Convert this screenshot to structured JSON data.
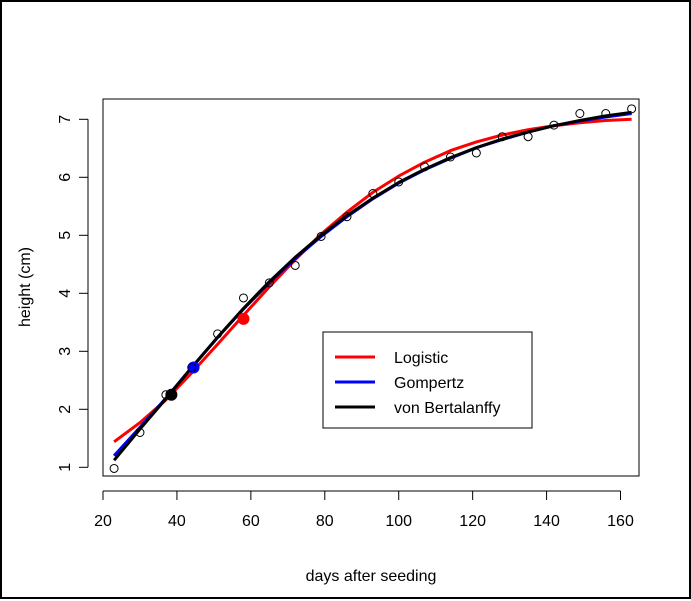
{
  "chart_data": {
    "type": "line",
    "title": "",
    "xlabel": "days after seeding",
    "ylabel": "height (cm)",
    "xlim": [
      20,
      165
    ],
    "ylim": [
      0.85,
      7.35
    ],
    "x_ticks": [
      20,
      40,
      60,
      80,
      100,
      120,
      140,
      160
    ],
    "y_ticks": [
      1,
      2,
      3,
      4,
      5,
      6,
      7
    ],
    "grid": false,
    "legend_position": "center-right",
    "observations": {
      "x": [
        23,
        30,
        37,
        44,
        51,
        58,
        65,
        72,
        79,
        86,
        93,
        100,
        107,
        114,
        121,
        128,
        135,
        142,
        149,
        156,
        163
      ],
      "y": [
        0.98,
        1.6,
        2.25,
        2.72,
        3.3,
        3.92,
        4.18,
        4.48,
        4.98,
        5.32,
        5.72,
        5.92,
        6.18,
        6.35,
        6.42,
        6.7,
        6.7,
        6.9,
        7.1,
        7.1,
        7.18
      ]
    },
    "series": [
      {
        "name": "Logistic",
        "color": "#ff0000",
        "x": [
          23,
          30,
          37,
          44,
          51,
          58,
          65,
          72,
          79,
          86,
          93,
          100,
          107,
          114,
          121,
          128,
          135,
          142,
          149,
          156,
          163
        ],
        "y": [
          1.44,
          1.77,
          2.16,
          2.63,
          3.12,
          3.62,
          4.11,
          4.58,
          5.02,
          5.4,
          5.74,
          6.02,
          6.26,
          6.46,
          6.61,
          6.73,
          6.82,
          6.89,
          6.94,
          6.98,
          7.0
        ],
        "marker": {
          "x": 58,
          "y": 3.56
        }
      },
      {
        "name": "Gompertz",
        "color": "#0000ff",
        "x": [
          23,
          30,
          37,
          44,
          51,
          58,
          65,
          72,
          79,
          86,
          93,
          100,
          107,
          114,
          121,
          128,
          135,
          142,
          149,
          156,
          163
        ],
        "y": [
          1.2,
          1.69,
          2.19,
          2.72,
          3.24,
          3.73,
          4.18,
          4.6,
          4.98,
          5.32,
          5.63,
          5.9,
          6.13,
          6.33,
          6.51,
          6.65,
          6.78,
          6.89,
          6.97,
          7.04,
          7.1
        ],
        "marker": {
          "x": 44.5,
          "y": 2.72
        }
      },
      {
        "name": "von Bertalanffy",
        "color": "#000000",
        "x": [
          23,
          30,
          37,
          44,
          51,
          58,
          65,
          72,
          79,
          86,
          93,
          100,
          107,
          114,
          121,
          128,
          135,
          142,
          149,
          156,
          163
        ],
        "y": [
          1.12,
          1.66,
          2.18,
          2.72,
          3.24,
          3.74,
          4.2,
          4.62,
          5.0,
          5.34,
          5.64,
          5.91,
          6.14,
          6.34,
          6.51,
          6.66,
          6.78,
          6.89,
          6.98,
          7.06,
          7.12
        ],
        "marker": {
          "x": 38.5,
          "y": 2.25
        }
      }
    ]
  }
}
